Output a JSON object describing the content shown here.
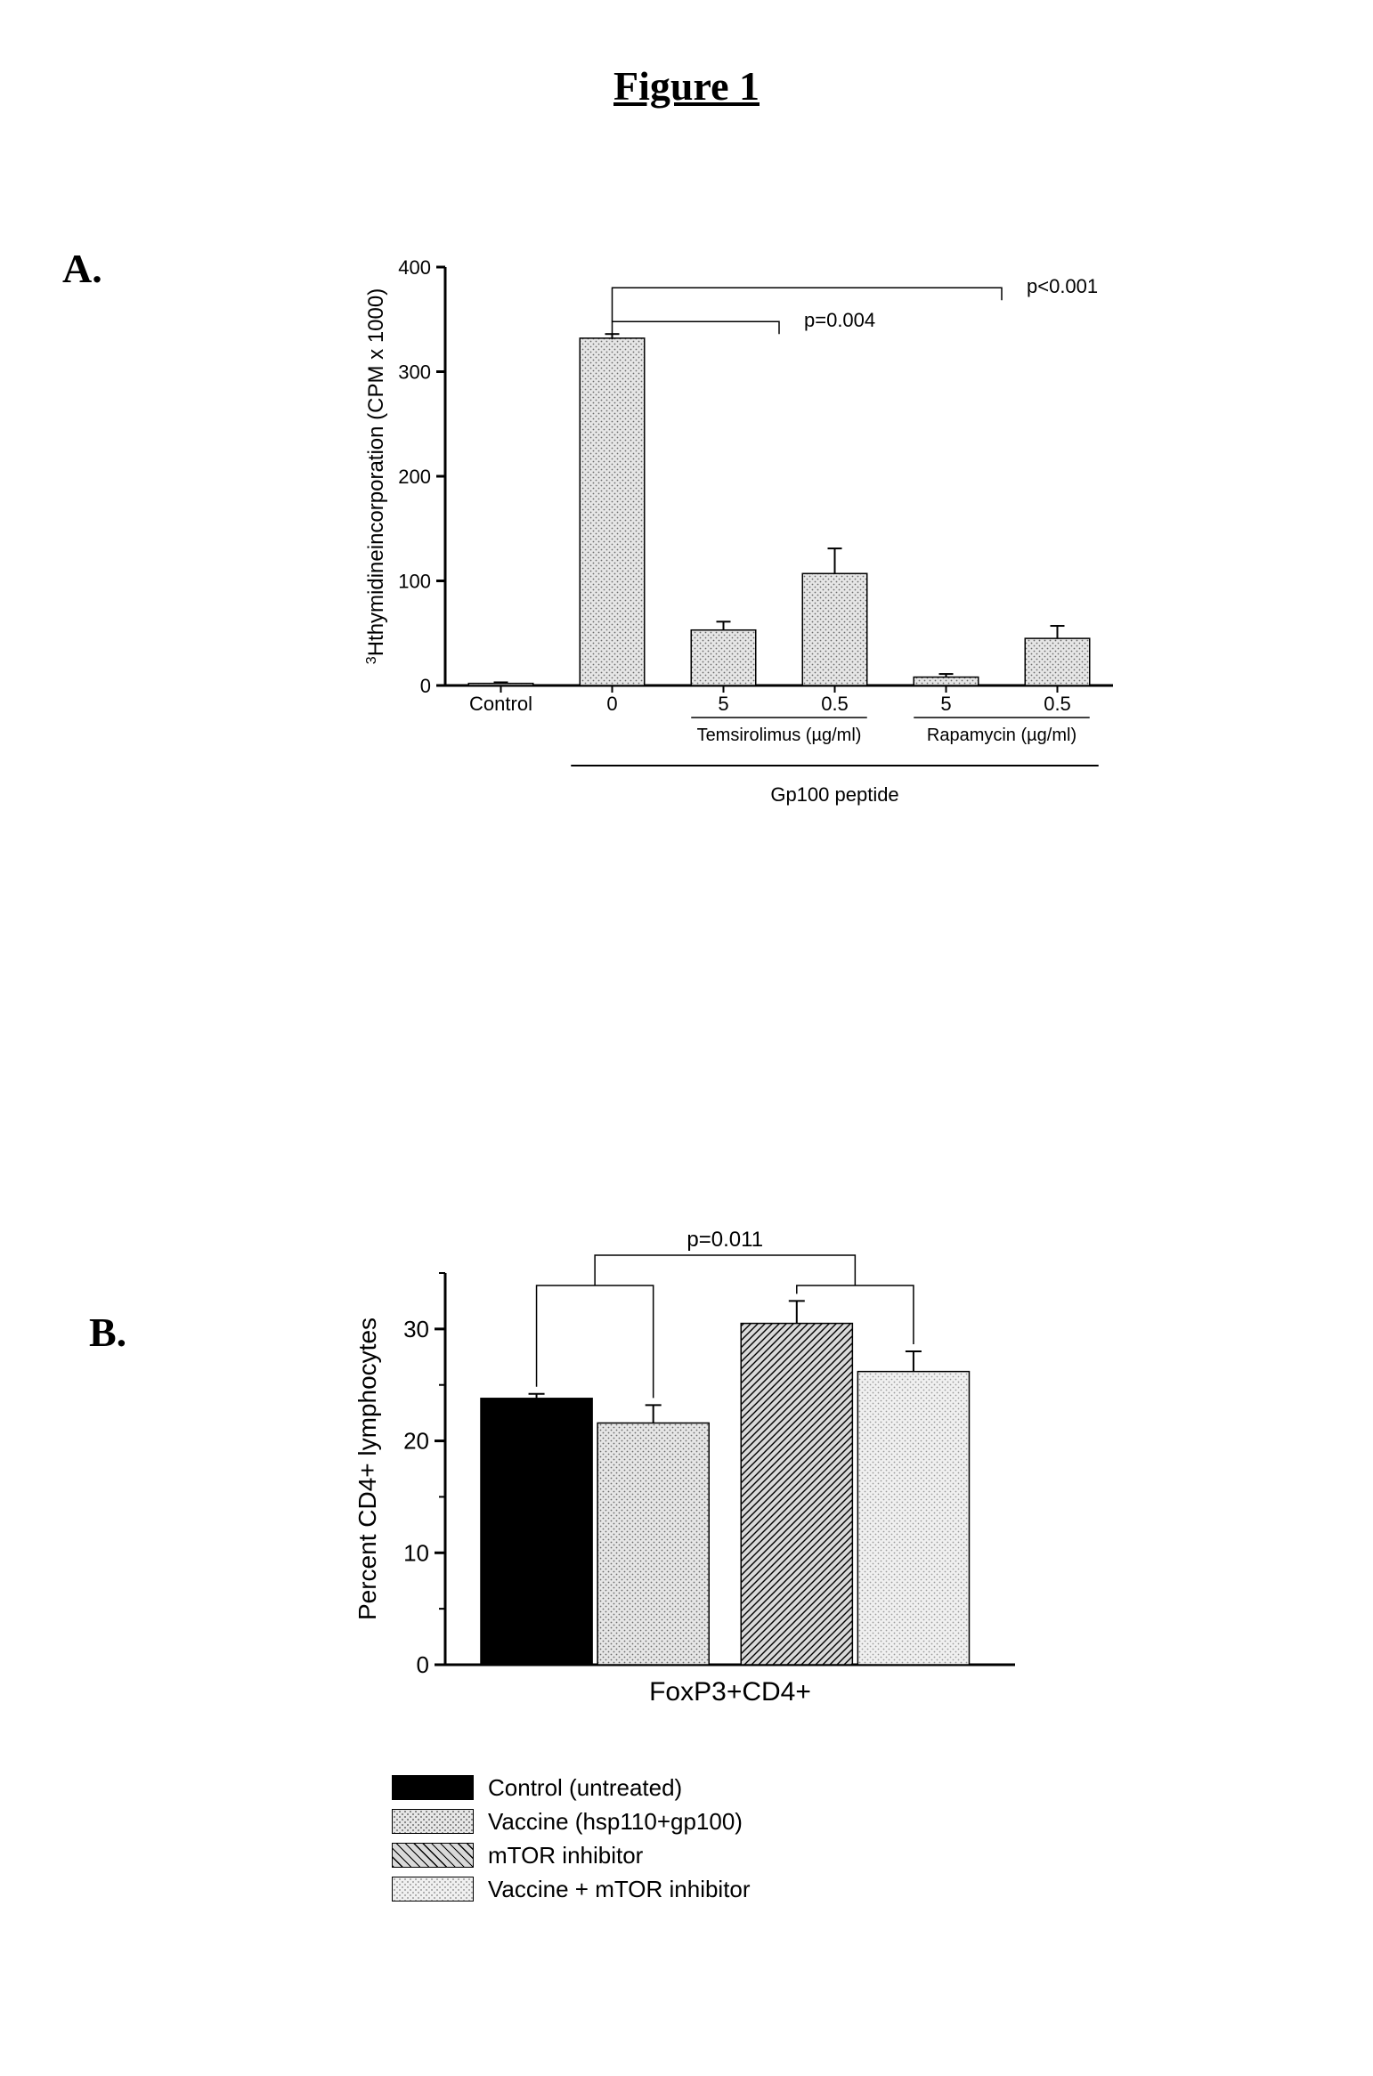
{
  "figure_title": "Figure 1",
  "panelA": {
    "label": "A.",
    "type": "bar",
    "y_axis_label_html": "<tspan font-size='18' dy='-10'>3</tspan><tspan dy='10'>Hthymidineincorporation (CPM x 1000)</tspan>",
    "y_axis_label_plain": "3Hthymidineincorporation (CPM x 1000)",
    "ylim": [
      0,
      400
    ],
    "ytick_step": 100,
    "bar_fill_pattern": "dots",
    "bar_fill_color": "#d9d9d9",
    "dot_color": "#808080",
    "bar_border_color": "#000000",
    "background_color": "#ffffff",
    "axis_color": "#000000",
    "bars": [
      {
        "label": "Control",
        "value": 2,
        "error": 1
      },
      {
        "label": "0",
        "value": 332,
        "error": 4
      },
      {
        "label": "5",
        "value": 53,
        "error": 8
      },
      {
        "label": "0.5",
        "value": 107,
        "error": 24
      },
      {
        "label": "5",
        "value": 8,
        "error": 3
      },
      {
        "label": "0.5",
        "value": 45,
        "error": 12
      }
    ],
    "group_labels": [
      {
        "text": "Temsirolimus (µg/ml)",
        "from_bar": 2,
        "to_bar": 3
      },
      {
        "text": "Rapamycin (µg/ml)",
        "from_bar": 4,
        "to_bar": 5
      }
    ],
    "overall_label": {
      "text": "Gp100 peptide",
      "from_bar": 1,
      "to_bar": 5
    },
    "significance": [
      {
        "from_bar": 1,
        "to_bar_group": [
          2,
          3
        ],
        "text": "p=0.004"
      },
      {
        "from_bar": 1,
        "to_bar_group": [
          4,
          5
        ],
        "text": "p<0.001"
      }
    ],
    "fontsize_axis": 24,
    "fontsize_ticks": 22,
    "fontsize_sub": 22
  },
  "panelB": {
    "label": "B.",
    "type": "bar",
    "y_axis_label": "Percent CD4+ lymphocytes",
    "x_axis_label": "FoxP3+CD4+",
    "ylim": [
      0,
      35
    ],
    "ytick_major": [
      0,
      10,
      20,
      30
    ],
    "ytick_minor": [
      5,
      15,
      25,
      35
    ],
    "background_color": "#ffffff",
    "axis_color": "#000000",
    "bars": [
      {
        "key": "control",
        "value": 23.8,
        "error": 0.4,
        "fill": "solid_black"
      },
      {
        "key": "vaccine",
        "value": 21.6,
        "error": 1.6,
        "fill": "dots"
      },
      {
        "key": "mtor",
        "value": 30.5,
        "error": 2.0,
        "fill": "diag"
      },
      {
        "key": "vacc_mtor",
        "value": 26.2,
        "error": 1.8,
        "fill": "dots_light"
      }
    ],
    "significance": {
      "left_group": [
        0,
        1
      ],
      "right_group": [
        2,
        3
      ],
      "text": "p=0.011"
    },
    "fontsize_axis": 28,
    "fontsize_ticks": 26,
    "legend": [
      {
        "key": "control",
        "label": "Control (untreated)",
        "fill": "solid_black"
      },
      {
        "key": "vaccine",
        "label": "Vaccine (hsp110+gp100)",
        "fill": "dots"
      },
      {
        "key": "mtor",
        "label": "mTOR inhibitor",
        "fill": "diag"
      },
      {
        "key": "vacc_mtor",
        "label": "Vaccine + mTOR inhibitor",
        "fill": "dots_light"
      }
    ]
  },
  "colors": {
    "solid_black": "#000000",
    "dot_bg": "#e6e6e6",
    "dot_fg": "#6b6b6b",
    "diag_bg": "#d9d9d9",
    "diag_fg": "#000000",
    "dots_light_bg": "#f0f0f0",
    "dots_light_fg": "#9a9a9a"
  }
}
